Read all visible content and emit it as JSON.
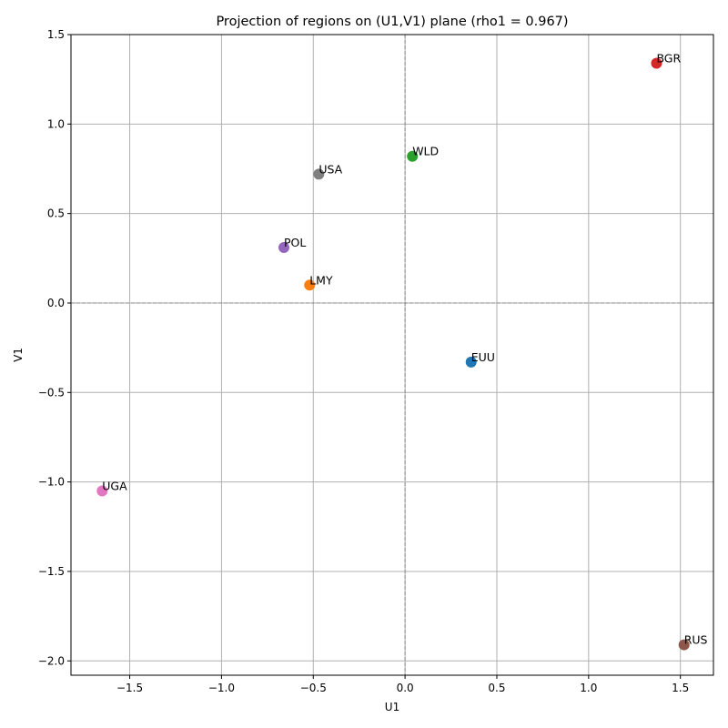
{
  "chart_data": {
    "type": "scatter",
    "title": "Projection of regions on (U1,V1) plane (rho1 = 0.967)",
    "xlabel": "U1",
    "ylabel": "V1",
    "xlim": [
      -1.82,
      1.68
    ],
    "ylim": [
      -2.08,
      1.5
    ],
    "xticks": [
      -1.5,
      -1.0,
      -0.5,
      0.0,
      0.5,
      1.0,
      1.5
    ],
    "yticks": [
      -2.0,
      -1.5,
      -1.0,
      -0.5,
      0.0,
      0.5,
      1.0,
      1.5
    ],
    "xtick_labels": [
      "−1.5",
      "−1.0",
      "−0.5",
      "0.0",
      "0.5",
      "1.0",
      "1.5"
    ],
    "ytick_labels": [
      "−2.0",
      "−1.5",
      "−1.0",
      "−0.5",
      "0.0",
      "0.5",
      "1.0",
      "1.5"
    ],
    "grid": true,
    "reference_lines": {
      "x": 0,
      "y": 0,
      "style": "dashed"
    },
    "points": [
      {
        "label": "EUU",
        "x": 0.36,
        "y": -0.33,
        "color": "#1f77b4"
      },
      {
        "label": "LMY",
        "x": -0.52,
        "y": 0.1,
        "color": "#ff7f0e"
      },
      {
        "label": "WLD",
        "x": 0.04,
        "y": 0.82,
        "color": "#2ca02c"
      },
      {
        "label": "BGR",
        "x": 1.37,
        "y": 1.34,
        "color": "#d62728"
      },
      {
        "label": "POL",
        "x": -0.66,
        "y": 0.31,
        "color": "#9467bd"
      },
      {
        "label": "RUS",
        "x": 1.52,
        "y": -1.91,
        "color": "#8c564b"
      },
      {
        "label": "UGA",
        "x": -1.65,
        "y": -1.05,
        "color": "#e377c2"
      },
      {
        "label": "USA",
        "x": -0.47,
        "y": 0.72,
        "color": "#7f7f7f"
      }
    ]
  }
}
